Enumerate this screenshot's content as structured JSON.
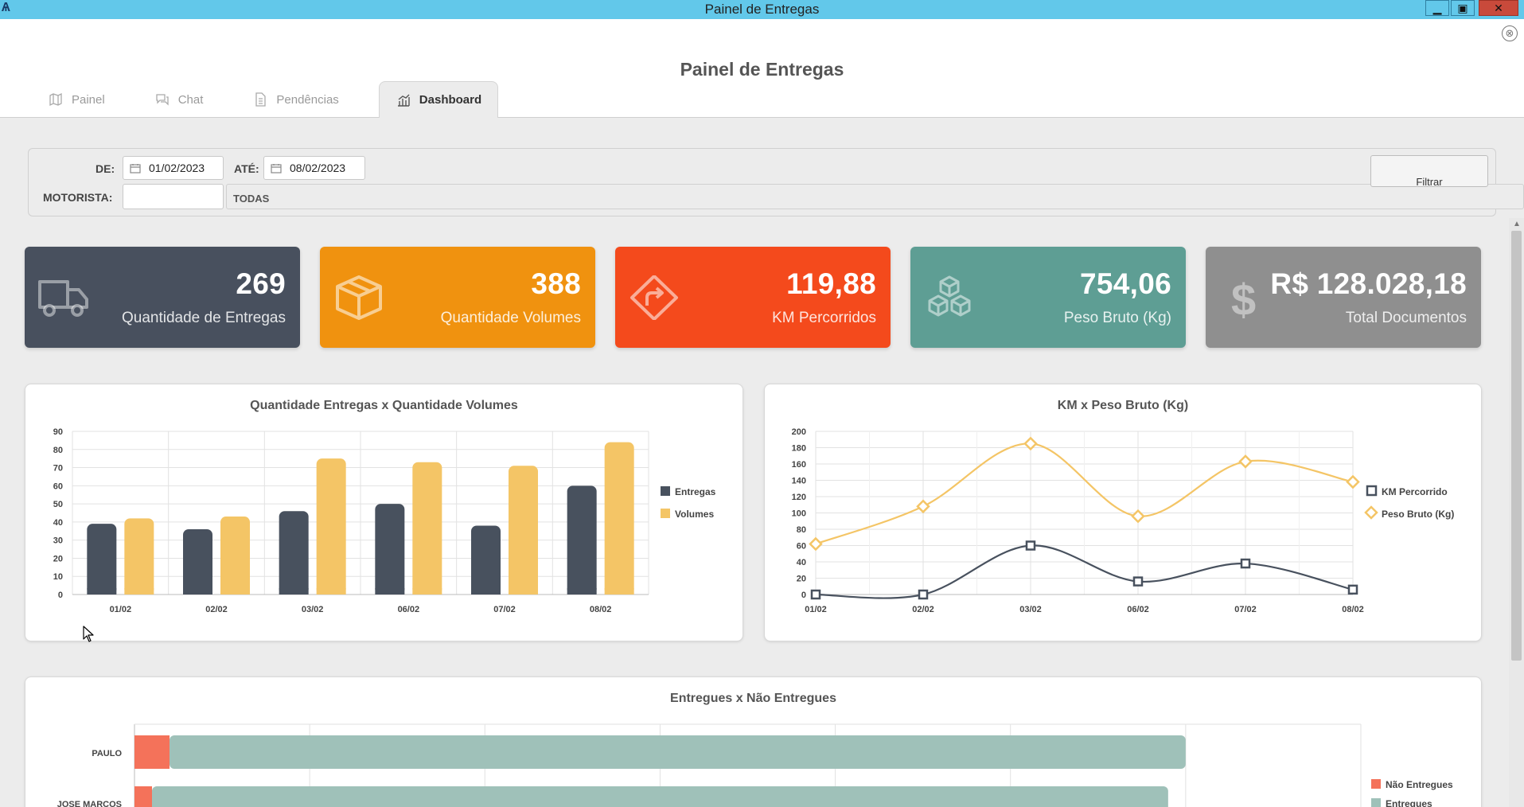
{
  "window": {
    "title": "Painel de Entregas",
    "min": "▁",
    "max": "▣",
    "close": "✕"
  },
  "header": {
    "page_title": "Painel de Entregas",
    "close_symbol": "⊗"
  },
  "tabs": [
    {
      "label": "Painel",
      "icon": "map-icon",
      "active": false
    },
    {
      "label": "Chat",
      "icon": "chat-icon",
      "active": false
    },
    {
      "label": "Pendências",
      "icon": "document-icon",
      "active": false
    },
    {
      "label": "Dashboard",
      "icon": "chart-icon",
      "active": true
    }
  ],
  "filter": {
    "de_label": "DE:",
    "de_value": "01/02/2023",
    "ate_label": "ATÉ:",
    "ate_value": "08/02/2023",
    "motorista_label": "MOTORISTA:",
    "motorista_value": "",
    "motorista_name": "TODAS",
    "button_label": "Filtrar"
  },
  "kpis": [
    {
      "value": "269",
      "label": "Quantidade de Entregas",
      "icon": "truck-icon",
      "color": "#48505e"
    },
    {
      "value": "388",
      "label": "Quantidade Volumes",
      "icon": "box-icon",
      "color": "#f0920f"
    },
    {
      "value": "119,88",
      "label": "KM Percorridos",
      "icon": "route-icon",
      "color": "#f44a1c"
    },
    {
      "value": "754,06",
      "label": "Peso Bruto (Kg)",
      "icon": "cubes-icon",
      "color": "#5e9e94"
    },
    {
      "value": "R$ 128.028,18",
      "label": "Total Documentos",
      "icon": "dollar-icon",
      "color": "#8f8f8f"
    }
  ],
  "chart_data": [
    {
      "type": "bar",
      "title": "Quantidade Entregas x Quantidade Volumes",
      "categories": [
        "01/02",
        "02/02",
        "03/02",
        "06/02",
        "07/02",
        "08/02"
      ],
      "series": [
        {
          "name": "Entregas",
          "color": "#48515e",
          "values": [
            39,
            36,
            46,
            50,
            38,
            60
          ]
        },
        {
          "name": "Volumes",
          "color": "#f4c566",
          "values": [
            42,
            43,
            75,
            73,
            71,
            84
          ]
        }
      ],
      "ylim": [
        0,
        90
      ],
      "yticks": [
        0,
        10,
        20,
        30,
        40,
        50,
        60,
        70,
        80,
        90
      ],
      "grid": true,
      "legend": "right"
    },
    {
      "type": "line",
      "title": "KM x Peso Bruto (Kg)",
      "categories": [
        "01/02",
        "02/02",
        "03/02",
        "06/02",
        "07/02",
        "08/02"
      ],
      "series": [
        {
          "name": "KM Percorrido",
          "color": "#48515e",
          "marker": "square",
          "values": [
            0,
            0,
            60,
            16,
            38,
            6
          ]
        },
        {
          "name": "Peso Bruto (Kg)",
          "color": "#f4c566",
          "marker": "diamond",
          "values": [
            62,
            108,
            185,
            96,
            163,
            138
          ]
        }
      ],
      "ylim": [
        0,
        200
      ],
      "yticks": [
        0,
        20,
        40,
        60,
        80,
        100,
        120,
        140,
        160,
        180,
        200
      ],
      "grid": true,
      "legend": "right"
    },
    {
      "type": "bar",
      "orientation": "horizontal",
      "stacked": true,
      "title": "Entregues x Não Entregues",
      "categories": [
        "PAULO",
        "JOSE MARCOS"
      ],
      "series": [
        {
          "name": "Não Entregues",
          "color": "#f4725a",
          "values": [
            2,
            1
          ]
        },
        {
          "name": "Entregues",
          "color": "#9fc1b9",
          "values": [
            58,
            58
          ]
        }
      ],
      "xlim": [
        0,
        70
      ],
      "grid": true,
      "legend": "right"
    }
  ]
}
